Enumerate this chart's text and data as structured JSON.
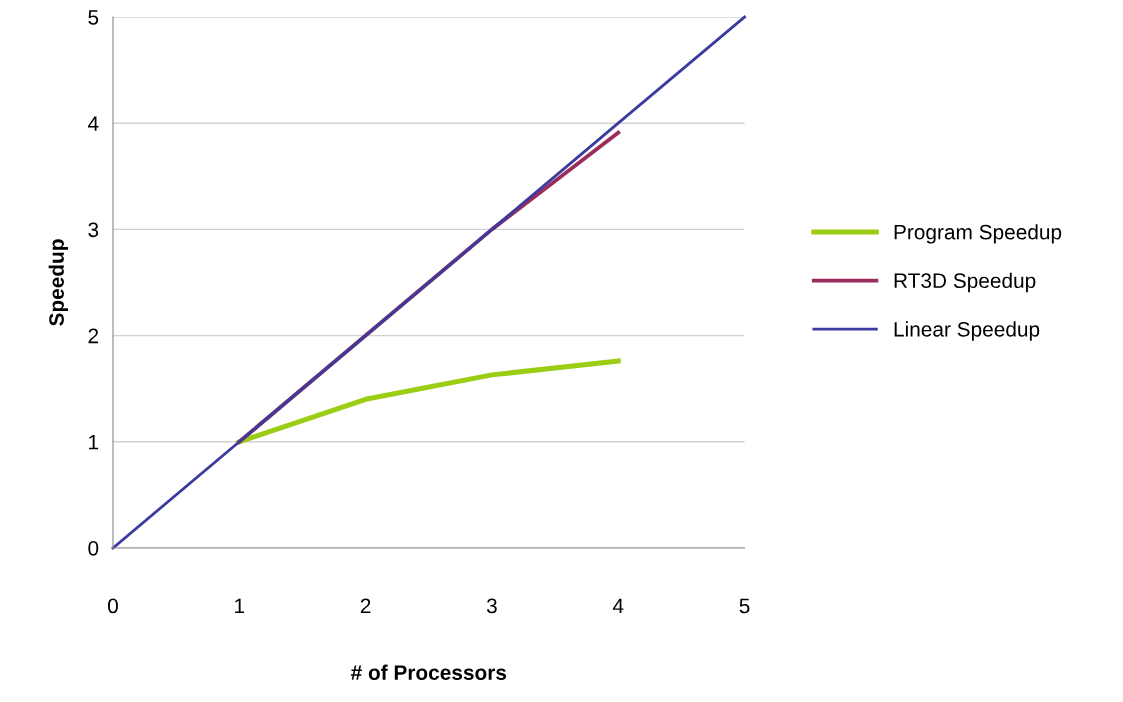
{
  "chart_data": {
    "type": "line",
    "xlabel": "# of Processors",
    "ylabel": "Speedup",
    "series": [
      {
        "name": "Program Speedup",
        "color": "#9acd14",
        "x": [
          1,
          2,
          3,
          4
        ],
        "values": [
          1,
          1.4,
          1.63,
          1.76
        ]
      },
      {
        "name": "RT3D Speedup",
        "color": "#9b2d5e",
        "x": [
          1,
          2,
          3,
          4
        ],
        "values": [
          1,
          2,
          3,
          3.91
        ]
      },
      {
        "name": "Linear Speedup",
        "color": "#3b3b9e",
        "x": [
          0,
          1,
          2,
          3,
          4,
          5
        ],
        "values": [
          0,
          1,
          2,
          3,
          4,
          5
        ]
      }
    ],
    "xlim": [
      0,
      5
    ],
    "ylim": [
      0,
      5
    ],
    "xticks": [
      0,
      1,
      2,
      3,
      4,
      5
    ],
    "yticks": [
      0,
      1,
      2,
      3,
      4,
      5
    ],
    "grid": "y",
    "legend": "right",
    "marker": "none",
    "line_style": "solid"
  }
}
